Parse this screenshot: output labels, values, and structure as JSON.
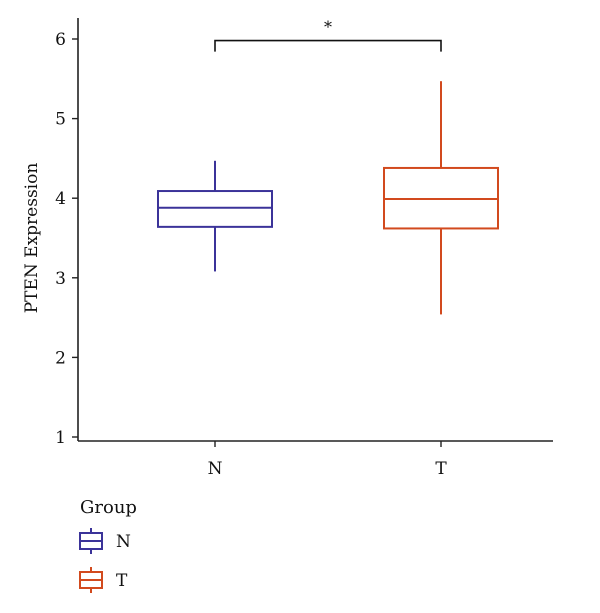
{
  "chart_data": {
    "type": "box",
    "ylabel": "PTEN Expression",
    "xlabel": "",
    "ylim": [
      1,
      6
    ],
    "yticks": [
      "1",
      "2",
      "3",
      "4",
      "5",
      "6"
    ],
    "categories": [
      "N",
      "T"
    ],
    "series": [
      {
        "name": "N",
        "color": "#3b3399",
        "whisker_low": 3.08,
        "q1": 3.64,
        "median": 3.88,
        "q3": 4.09,
        "whisker_high": 4.47
      },
      {
        "name": "T",
        "color": "#d24a1e",
        "whisker_low": 2.54,
        "q1": 3.62,
        "median": 3.99,
        "q3": 4.38,
        "whisker_high": 5.47
      }
    ],
    "significance": {
      "from": "N",
      "to": "T",
      "label": "*",
      "y": 5.98
    },
    "legend": {
      "title": "Group",
      "position": "bottom-left",
      "entries": [
        "N",
        "T"
      ]
    },
    "grid": false
  }
}
